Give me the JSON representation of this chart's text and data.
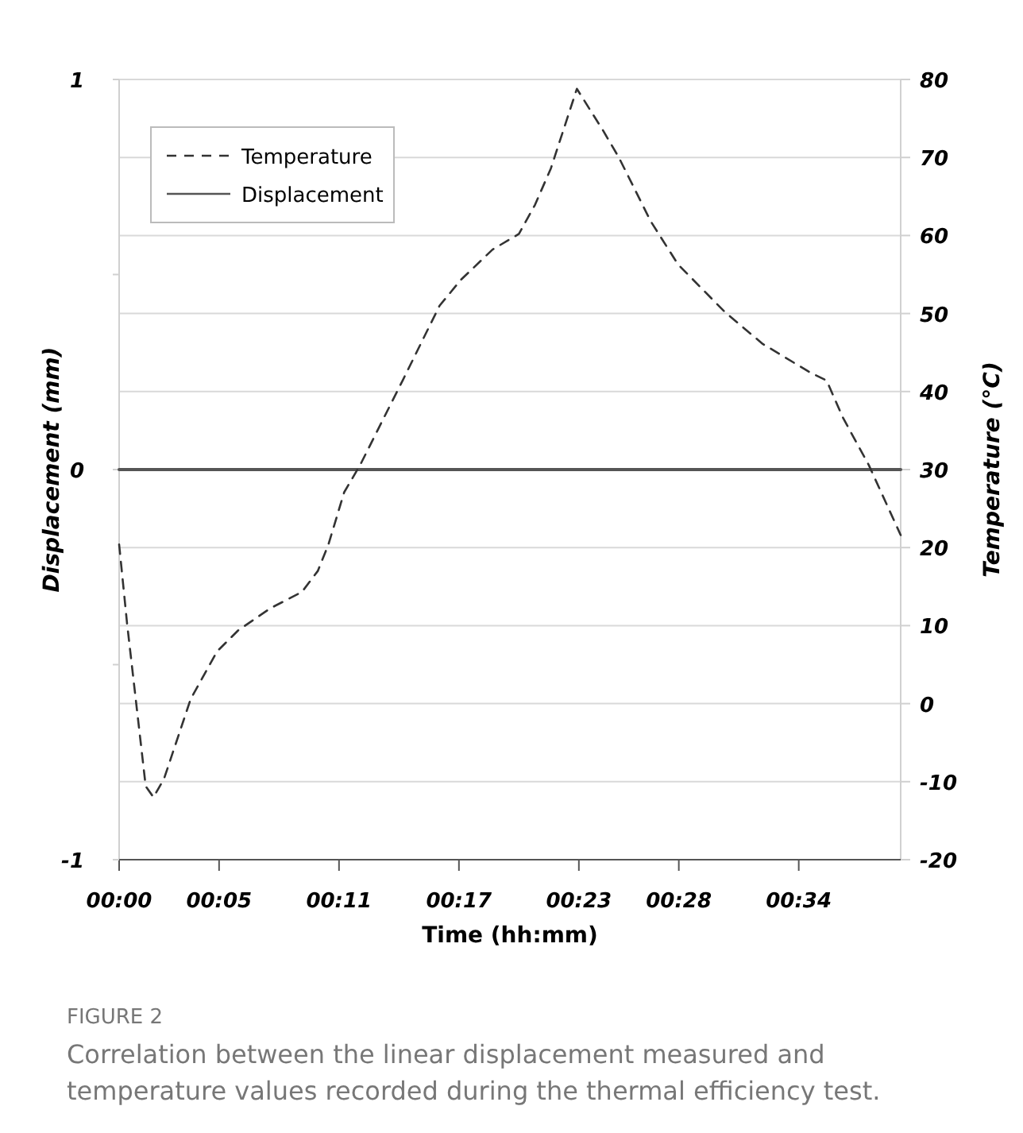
{
  "chart_data": {
    "type": "line",
    "xlabel": "Time (hh:mm)",
    "ylabel": "Displacement (mm)",
    "y2label": "Temperature (°C)",
    "xlim": [
      0,
      39.1
    ],
    "xticks": [
      {
        "value": 0,
        "label": "00:00"
      },
      {
        "value": 5,
        "label": "00:05"
      },
      {
        "value": 11,
        "label": "00:11"
      },
      {
        "value": 17,
        "label": "00:17"
      },
      {
        "value": 23,
        "label": "00:23"
      },
      {
        "value": 28,
        "label": "00:28"
      },
      {
        "value": 34,
        "label": "00:34"
      }
    ],
    "ylim": [
      -1,
      1
    ],
    "yticks": [
      -1,
      {
        "value": -0.5,
        "label": null
      },
      0,
      {
        "value": 0.5,
        "label": null
      },
      1
    ],
    "y2lim": [
      -20,
      80
    ],
    "y2ticks": [
      -20,
      -10,
      0,
      10,
      20,
      30,
      40,
      50,
      60,
      70,
      80
    ],
    "grid": "y2",
    "legend": "top left",
    "series": [
      {
        "name": "Temperature",
        "color": "#333333",
        "axis": "y2",
        "line_style": "dashed",
        "x": [
          0,
          0.4,
          1.33,
          1.72,
          2.25,
          3.58,
          4.9,
          5.96,
          7.55,
          9.14,
          9.94,
          10.47,
          11.26,
          12.06,
          14.18,
          16.03,
          17.09,
          18.68,
          20.0,
          20.8,
          21.6,
          22.9,
          24.2,
          25.0,
          26.6,
          27.96,
          30.3,
          32.2,
          34.6,
          35.4,
          36.2,
          37.5,
          39.1
        ],
        "values": [
          20.4,
          10.2,
          -10.6,
          -12,
          -9.6,
          0.6,
          6.7,
          9.4,
          12.2,
          14.3,
          17,
          20.4,
          27.1,
          30.6,
          41.4,
          51,
          54.3,
          58.2,
          60.2,
          63.9,
          68.6,
          78.8,
          73.5,
          70,
          61.8,
          56.3,
          50.2,
          46.1,
          42.4,
          41.4,
          36.7,
          30.6,
          21.6
        ]
      },
      {
        "name": "Displacement",
        "color": "#555555",
        "line_style": "solid",
        "x": [
          0,
          39.1
        ],
        "values": [
          0,
          0
        ]
      }
    ],
    "annotations": [
      "FIGURE 2",
      "Correlation between the linear displacement measured and temperature values recorded during the thermal efficiency test."
    ]
  }
}
